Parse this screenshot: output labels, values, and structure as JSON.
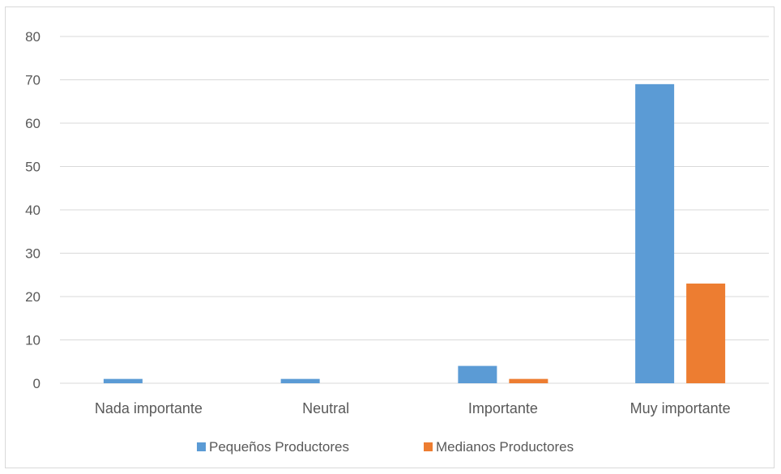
{
  "chart_data": {
    "type": "bar",
    "categories": [
      "Nada importante",
      "Neutral",
      "Importante",
      "Muy importante"
    ],
    "series": [
      {
        "name": "Pequeños Productores",
        "values": [
          1,
          1,
          4,
          69
        ],
        "color": "#5b9bd5"
      },
      {
        "name": "Medianos Productores",
        "values": [
          0,
          0,
          1,
          23
        ],
        "color": "#ed7d31"
      }
    ],
    "ylim": [
      0,
      80
    ],
    "yticks": [
      0,
      10,
      20,
      30,
      40,
      50,
      60,
      70,
      80
    ],
    "grid": true,
    "legend_position": "bottom",
    "gridline_color": "#d9d9d9",
    "axis_text_color": "#595959"
  }
}
